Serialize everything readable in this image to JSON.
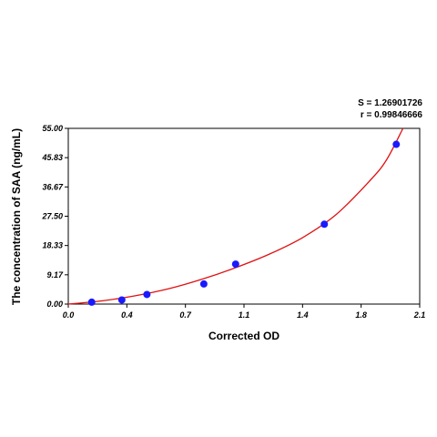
{
  "stats": {
    "s_text": "S = 1.26901726",
    "r_text": "r = 0.99846666"
  },
  "chart_data": {
    "type": "scatter",
    "title": "",
    "xlabel": "Corrected OD",
    "ylabel": "The concentration of SAA (ng/mL)",
    "xlim": [
      0.0,
      2.1
    ],
    "ylim": [
      0.0,
      55.0
    ],
    "xticks": [
      "0.0",
      "0.4",
      "0.7",
      "1.1",
      "1.4",
      "1.8",
      "2.1"
    ],
    "yticks": [
      "0.00",
      "9.17",
      "18.33",
      "27.50",
      "36.67",
      "45.83",
      "55.00"
    ],
    "grid": false,
    "points": [
      {
        "x": 0.14,
        "y": 0.6
      },
      {
        "x": 0.32,
        "y": 1.3
      },
      {
        "x": 0.47,
        "y": 3.0
      },
      {
        "x": 0.81,
        "y": 6.3
      },
      {
        "x": 1.0,
        "y": 12.5
      },
      {
        "x": 1.53,
        "y": 25.0
      },
      {
        "x": 1.96,
        "y": 50.0
      }
    ],
    "fit_curve": {
      "x": [
        0.0,
        0.2,
        0.4,
        0.6,
        0.8,
        1.0,
        1.2,
        1.4,
        1.6,
        1.8,
        1.9,
        2.0
      ],
      "y": [
        0.0,
        1.0,
        2.6,
        4.8,
        7.8,
        11.4,
        15.6,
        20.8,
        28.0,
        38.5,
        45.0,
        55.0
      ]
    },
    "colors": {
      "points": "#1a1aff",
      "curve": "#e01010",
      "axes": "#000000"
    }
  }
}
